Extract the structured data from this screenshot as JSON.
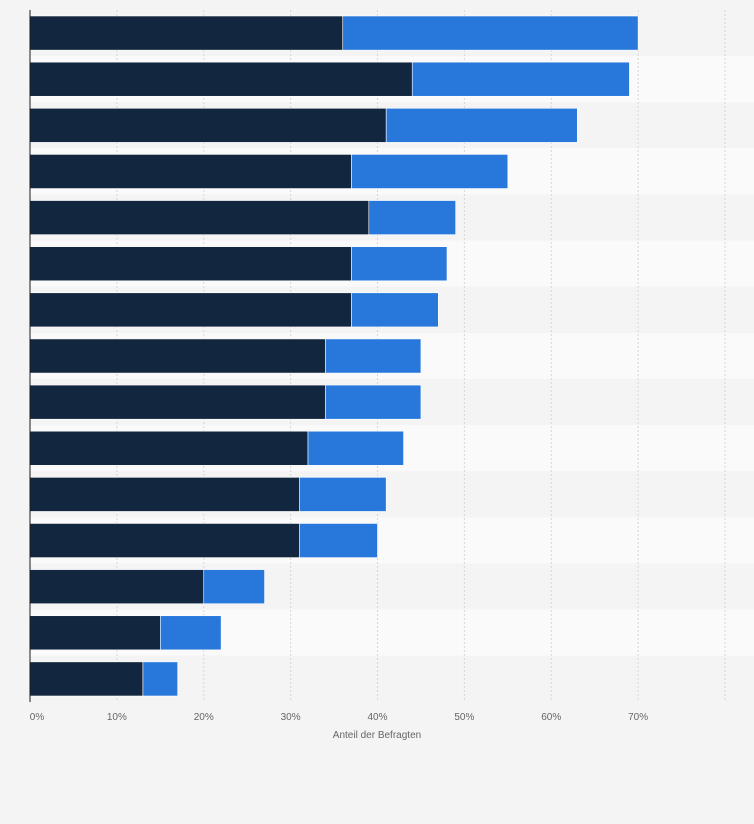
{
  "chart_data": {
    "type": "bar",
    "orientation": "horizontal",
    "stacked": true,
    "categories": [
      "",
      "",
      "",
      "",
      "",
      "",
      "",
      "",
      "",
      "",
      "",
      "",
      "",
      "",
      ""
    ],
    "series": [
      {
        "color": "#12263f",
        "values": [
          36,
          44,
          41,
          37,
          39,
          37,
          37,
          34,
          34,
          32,
          31,
          31,
          20,
          15,
          13
        ]
      },
      {
        "color": "#2878dc",
        "values": [
          34,
          25,
          22,
          18,
          10,
          11,
          10,
          11,
          11,
          11,
          10,
          9,
          7,
          7,
          4
        ]
      }
    ],
    "x_ticks": [
      0,
      10,
      20,
      30,
      40,
      50,
      60,
      70
    ],
    "x_tick_labels": [
      "0%",
      "10%",
      "20%",
      "30%",
      "40%",
      "50%",
      "60%",
      "70%"
    ],
    "xlim": [
      0,
      80
    ],
    "xlabel": "Anteil der Befragten",
    "ylabel": "",
    "grid": "vertical-dashed",
    "legend": "none"
  }
}
